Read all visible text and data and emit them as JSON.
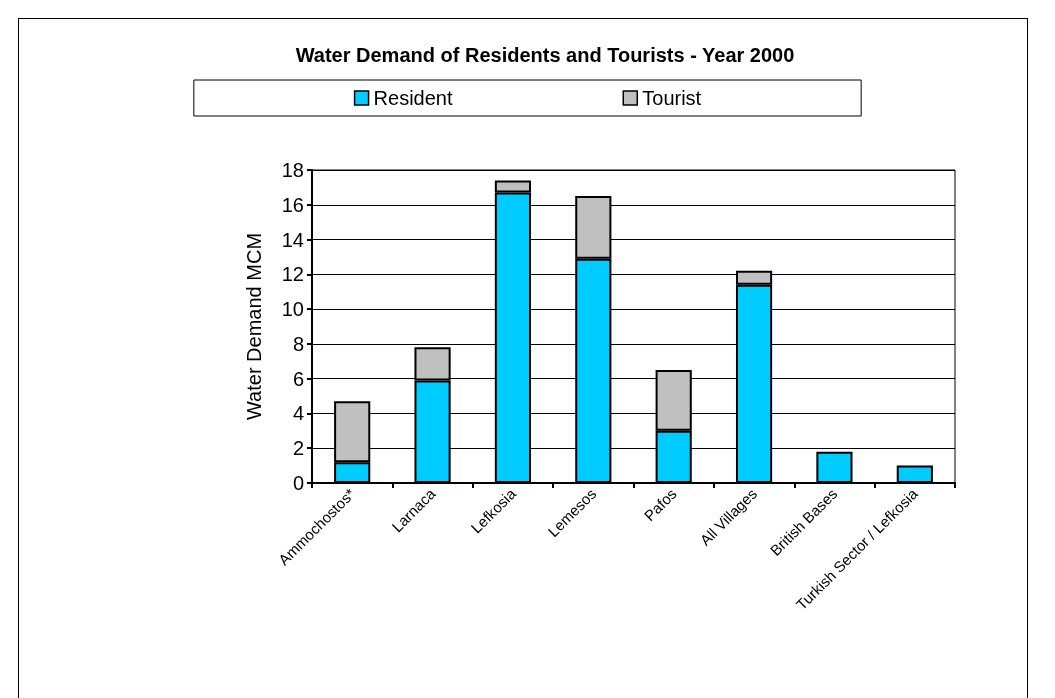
{
  "chart_data": {
    "type": "bar",
    "title": "Water Demand of Residents and Tourists - Year 2000",
    "ylabel": "Water Demand MCM",
    "categories": [
      "Ammochostos*",
      "Larnaca",
      "Lefkosia",
      "Lemesos",
      "Pafos",
      "All Villages",
      "British Bases",
      "Turkish Sector / Lefkosia"
    ],
    "series": [
      {
        "name": "Resident",
        "color": "#00ccff",
        "values": [
          1.2,
          5.9,
          16.7,
          12.9,
          3.0,
          11.4,
          1.8,
          1.0
        ]
      },
      {
        "name": "Tourist",
        "color": "#c0c0c0",
        "values": [
          3.5,
          1.9,
          0.7,
          3.6,
          3.5,
          0.8,
          null,
          null
        ]
      }
    ],
    "stacked": true,
    "ylim": [
      0,
      18
    ],
    "yticks": [
      0,
      2,
      4,
      6,
      8,
      10,
      12,
      14,
      16,
      18
    ],
    "grid": "y",
    "legend": "top"
  }
}
